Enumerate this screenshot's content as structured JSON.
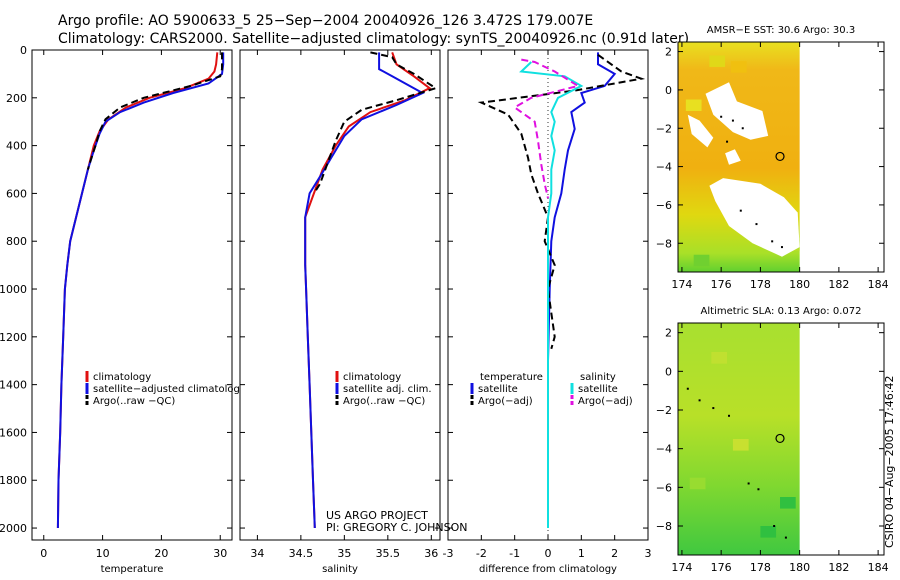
{
  "header": {
    "line1": "Argo profile: AO 5900633_5 25−Sep−2004 20040926_126 3.472S 179.007E",
    "line2": "Climatology: CARS2000. Satellite−adjusted climatology: synTS_20040926.nc (0.91d later)"
  },
  "project": {
    "line1": "US ARGO PROJECT",
    "line2": "PI: GREGORY C. JOHNSON"
  },
  "side_note": "CSIRO 04−Aug−2005 17:46:42",
  "colors": {
    "red": "#e01010",
    "blue": "#1010e0",
    "black": "#000000",
    "cyan": "#10e0e0",
    "magenta": "#e010e0",
    "land": "#ffffff",
    "sea_hi": "#f0b010",
    "sea_mid": "#e0e010",
    "sea_lo": "#60d030"
  },
  "chart_data": [
    {
      "type": "line",
      "id": "temperature",
      "xlabel": "temperature",
      "ylabel": "",
      "xlim": [
        -2,
        32
      ],
      "ylim": [
        2050,
        0
      ],
      "xticks": [
        0,
        10,
        20,
        30
      ],
      "yticks": [
        0,
        200,
        400,
        600,
        800,
        1000,
        1200,
        1400,
        1600,
        1800,
        2000
      ],
      "legend": [
        "climatology",
        "satellite−adjusted climatology",
        "Argo(..raw −QC)"
      ],
      "series": [
        {
          "name": "climatology",
          "color": "red",
          "dash": "",
          "points": [
            [
              29.5,
              10
            ],
            [
              29.3,
              60
            ],
            [
              29.0,
              90
            ],
            [
              28,
              120
            ],
            [
              24,
              160
            ],
            [
              18,
              200
            ],
            [
              14,
              240
            ],
            [
              11,
              290
            ],
            [
              9.5,
              340
            ],
            [
              8.5,
              400
            ],
            [
              7.5,
              500
            ],
            [
              6.5,
              600
            ],
            [
              5.5,
              700
            ],
            [
              4.5,
              800
            ],
            [
              4.0,
              900
            ],
            [
              3.6,
              1000
            ],
            [
              3.3,
              1200
            ],
            [
              3.0,
              1400
            ],
            [
              2.8,
              1600
            ],
            [
              2.5,
              1800
            ],
            [
              2.4,
              2000
            ]
          ]
        },
        {
          "name": "satellite",
          "color": "blue",
          "dash": "",
          "points": [
            [
              30.5,
              10
            ],
            [
              30.5,
              60
            ],
            [
              30.3,
              100
            ],
            [
              28,
              140
            ],
            [
              22,
              180
            ],
            [
              17,
              220
            ],
            [
              13,
              260
            ],
            [
              10.5,
              300
            ],
            [
              9.5,
              350
            ],
            [
              8.5,
              420
            ],
            [
              7.5,
              500
            ],
            [
              6.5,
              600
            ],
            [
              5.5,
              700
            ],
            [
              4.5,
              800
            ],
            [
              4.0,
              900
            ],
            [
              3.6,
              1000
            ],
            [
              3.3,
              1200
            ],
            [
              3.0,
              1400
            ],
            [
              2.8,
              1600
            ],
            [
              2.5,
              1800
            ],
            [
              2.4,
              2000
            ]
          ]
        },
        {
          "name": "argo",
          "color": "black",
          "dash": "7,4",
          "points": [
            [
              30.3,
              10
            ],
            [
              30.3,
              80
            ],
            [
              30.0,
              110
            ],
            [
              25,
              150
            ],
            [
              17,
              200
            ],
            [
              13,
              240
            ],
            [
              10.5,
              290
            ],
            [
              9.5,
              340
            ],
            [
              8.8,
              400
            ],
            [
              8.0,
              460
            ],
            [
              7.5,
              500
            ]
          ]
        }
      ]
    },
    {
      "type": "line",
      "id": "salinity",
      "xlabel": "salinity",
      "ylabel": "",
      "xlim": [
        33.8,
        36.1
      ],
      "ylim": [
        2050,
        0
      ],
      "xticks": [
        34,
        34.5,
        35,
        35.5,
        36
      ],
      "yticks": [
        0,
        200,
        400,
        600,
        800,
        1000,
        1200,
        1400,
        1600,
        1800,
        2000
      ],
      "legend": [
        "climatology",
        "satellite adj. clim.",
        "Argo(..raw −QC)"
      ],
      "series": [
        {
          "name": "climatology",
          "color": "red",
          "dash": "",
          "points": [
            [
              35.55,
              10
            ],
            [
              35.6,
              60
            ],
            [
              35.8,
              110
            ],
            [
              35.98,
              160
            ],
            [
              35.7,
              210
            ],
            [
              35.3,
              260
            ],
            [
              35.05,
              320
            ],
            [
              34.9,
              400
            ],
            [
              34.75,
              500
            ],
            [
              34.65,
              600
            ],
            [
              34.55,
              700
            ],
            [
              34.55,
              800
            ],
            [
              34.55,
              900
            ],
            [
              34.56,
              1000
            ],
            [
              34.58,
              1200
            ],
            [
              34.6,
              1400
            ],
            [
              34.62,
              1600
            ],
            [
              34.64,
              1800
            ],
            [
              34.66,
              2000
            ]
          ]
        },
        {
          "name": "satellite",
          "color": "blue",
          "dash": "",
          "points": [
            [
              35.4,
              10
            ],
            [
              35.4,
              80
            ],
            [
              35.55,
              110
            ],
            [
              35.75,
              150
            ],
            [
              35.9,
              180
            ],
            [
              35.6,
              230
            ],
            [
              35.2,
              290
            ],
            [
              35.0,
              360
            ],
            [
              34.85,
              450
            ],
            [
              34.72,
              530
            ],
            [
              34.6,
              600
            ],
            [
              34.55,
              700
            ],
            [
              34.55,
              800
            ],
            [
              34.55,
              900
            ],
            [
              34.56,
              1000
            ],
            [
              34.58,
              1200
            ],
            [
              34.6,
              1400
            ],
            [
              34.62,
              1600
            ],
            [
              34.64,
              1800
            ],
            [
              34.66,
              2000
            ]
          ]
        },
        {
          "name": "argo",
          "color": "black",
          "dash": "7,4",
          "points": [
            [
              35.3,
              10
            ],
            [
              35.55,
              30
            ],
            [
              35.6,
              60
            ],
            [
              35.8,
              100
            ],
            [
              36.05,
              160
            ],
            [
              35.6,
              210
            ],
            [
              35.2,
              250
            ],
            [
              35.0,
              300
            ],
            [
              34.9,
              380
            ],
            [
              34.8,
              480
            ],
            [
              34.72,
              560
            ],
            [
              34.65,
              600
            ]
          ]
        }
      ]
    },
    {
      "type": "line",
      "id": "difference",
      "xlabel": "difference from climatology",
      "ylabel": "",
      "xlim": [
        -3,
        3
      ],
      "ylim": [
        2050,
        0
      ],
      "xticks": [
        -3,
        -2,
        -1,
        0,
        1,
        2,
        3
      ],
      "yticks": [
        0,
        200,
        400,
        600,
        800,
        1000,
        1200,
        1400,
        1600,
        1800,
        2000
      ],
      "legend": [
        "temperature",
        "satellite",
        "Argo(−adj)",
        "salinity",
        "satellite",
        "Argo(−adj)"
      ],
      "series": [
        {
          "name": "temperature satellite",
          "color": "blue",
          "dash": "",
          "points": [
            [
              1.5,
              10
            ],
            [
              1.5,
              60
            ],
            [
              2.0,
              100
            ],
            [
              1.7,
              150
            ],
            [
              1.0,
              180
            ],
            [
              1.1,
              220
            ],
            [
              0.7,
              260
            ],
            [
              0.8,
              330
            ],
            [
              0.6,
              420
            ],
            [
              0.5,
              500
            ],
            [
              0.4,
              600
            ],
            [
              0.2,
              700
            ],
            [
              0.1,
              800
            ],
            [
              0.05,
              1000
            ],
            [
              0.0,
              1300
            ],
            [
              0.0,
              1600
            ],
            [
              0.0,
              2000
            ]
          ]
        },
        {
          "name": "temperature argo",
          "color": "black",
          "dash": "7,4",
          "points": [
            [
              1.5,
              20
            ],
            [
              2.2,
              90
            ],
            [
              2.8,
              120
            ],
            [
              0.8,
              170
            ],
            [
              -2.0,
              220
            ],
            [
              -1.2,
              270
            ],
            [
              -0.8,
              350
            ],
            [
              -0.6,
              450
            ],
            [
              -0.5,
              520
            ],
            [
              -0.3,
              600
            ],
            [
              0.0,
              700
            ],
            [
              -0.1,
              800
            ],
            [
              0.2,
              900
            ],
            [
              0.0,
              1000
            ],
            [
              0.1,
              1100
            ],
            [
              0.2,
              1200
            ],
            [
              0.1,
              1250
            ]
          ]
        },
        {
          "name": "salinity satellite",
          "color": "cyan",
          "dash": "",
          "points": [
            [
              -0.5,
              50
            ],
            [
              -0.8,
              90
            ],
            [
              0.5,
              110
            ],
            [
              1.0,
              150
            ],
            [
              0.3,
              200
            ],
            [
              0.1,
              260
            ],
            [
              0.2,
              300
            ],
            [
              0.1,
              360
            ],
            [
              0.2,
              420
            ],
            [
              0.1,
              500
            ],
            [
              0.1,
              600
            ],
            [
              0.0,
              700
            ],
            [
              0.0,
              800
            ],
            [
              0.0,
              1000
            ],
            [
              0.0,
              1300
            ],
            [
              0.0,
              1600
            ],
            [
              0.0,
              2000
            ]
          ]
        },
        {
          "name": "salinity argo",
          "color": "magenta",
          "dash": "7,4",
          "points": [
            [
              -0.8,
              40
            ],
            [
              -0.4,
              50
            ],
            [
              0.2,
              90
            ],
            [
              0.9,
              150
            ],
            [
              -0.5,
              200
            ],
            [
              -1.0,
              240
            ],
            [
              -0.4,
              300
            ],
            [
              -0.3,
              380
            ],
            [
              -0.2,
              480
            ],
            [
              -0.1,
              560
            ],
            [
              0.0,
              620
            ]
          ]
        }
      ]
    },
    {
      "type": "heatmap",
      "id": "sst_map",
      "title": "AMSR−E SST: 30.6 Argo: 30.3",
      "xlim": [
        173.8,
        184.3
      ],
      "ylim": [
        -9.5,
        2.5
      ],
      "xticks": [
        174,
        176,
        178,
        180,
        182,
        184
      ],
      "yticks": [
        -8,
        -6,
        -4,
        -2,
        0,
        2
      ],
      "data_extent_lon": [
        174,
        180
      ],
      "argo_position": [
        179.0,
        -3.47
      ]
    },
    {
      "type": "heatmap",
      "id": "sla_map",
      "title": "Altimetric SLA: 0.13 Argo: 0.072",
      "xlim": [
        173.8,
        184.3
      ],
      "ylim": [
        -9.5,
        2.5
      ],
      "xticks": [
        174,
        176,
        178,
        180,
        182,
        184
      ],
      "yticks": [
        -8,
        -6,
        -4,
        -2,
        0,
        2
      ],
      "data_extent_lon": [
        174,
        180
      ],
      "argo_position": [
        179.0,
        -3.47
      ]
    }
  ]
}
